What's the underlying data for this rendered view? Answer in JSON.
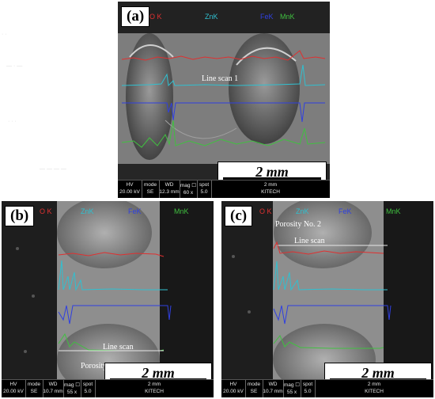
{
  "panels": [
    {
      "tag": "(a)",
      "legend": [
        {
          "label": "O K",
          "color": "#e03030"
        },
        {
          "label": "ZnK",
          "color": "#30c0d0"
        },
        {
          "label": "FeK",
          "color": "#3040e0"
        },
        {
          "label": "MnK",
          "color": "#40c040"
        }
      ],
      "annotations": [
        {
          "text": "Line scan 1"
        }
      ],
      "scale_label": "2 mm",
      "databar": {
        "headers": [
          "HV",
          "mode",
          "WD",
          "mag ☐",
          "spot",
          "2 mm",
          ""
        ],
        "values": [
          "20.00 kV",
          "SE",
          "12.3 mm",
          "60 x",
          "5.0",
          "",
          "KITECH"
        ]
      }
    },
    {
      "tag": "(b)",
      "legend": [
        {
          "label": "O K",
          "color": "#e03030"
        },
        {
          "label": "ZnK",
          "color": "#30c0d0"
        },
        {
          "label": "FeK",
          "color": "#3040e0"
        },
        {
          "label": "MnK",
          "color": "#40c040"
        }
      ],
      "annotations": [
        {
          "text": "Line scan"
        },
        {
          "text": "Porosity N"
        }
      ],
      "scale_label": "2 mm",
      "databar": {
        "headers": [
          "HV",
          "mode",
          "WD",
          "mag ☐",
          "spot",
          "2 mm",
          ""
        ],
        "values": [
          "20.00 kV",
          "SE",
          "10.7 mm",
          "55 x",
          "5.0",
          "",
          "KITECH"
        ]
      }
    },
    {
      "tag": "(c)",
      "legend": [
        {
          "label": "O K",
          "color": "#e03030"
        },
        {
          "label": "ZnK",
          "color": "#30c0d0"
        },
        {
          "label": "FeK",
          "color": "#3040e0"
        },
        {
          "label": "MnK",
          "color": "#40c040"
        }
      ],
      "annotations": [
        {
          "text": "Porosity No. 2"
        },
        {
          "text": "Line scan"
        }
      ],
      "scale_label": "2 mm",
      "databar": {
        "headers": [
          "HV",
          "mode",
          "WD",
          "mag ☐",
          "spot",
          "2 mm",
          ""
        ],
        "values": [
          "20.00 kV",
          "SE",
          "10.7 mm",
          "55 x",
          "5.0",
          "",
          "KITECH"
        ]
      }
    }
  ]
}
